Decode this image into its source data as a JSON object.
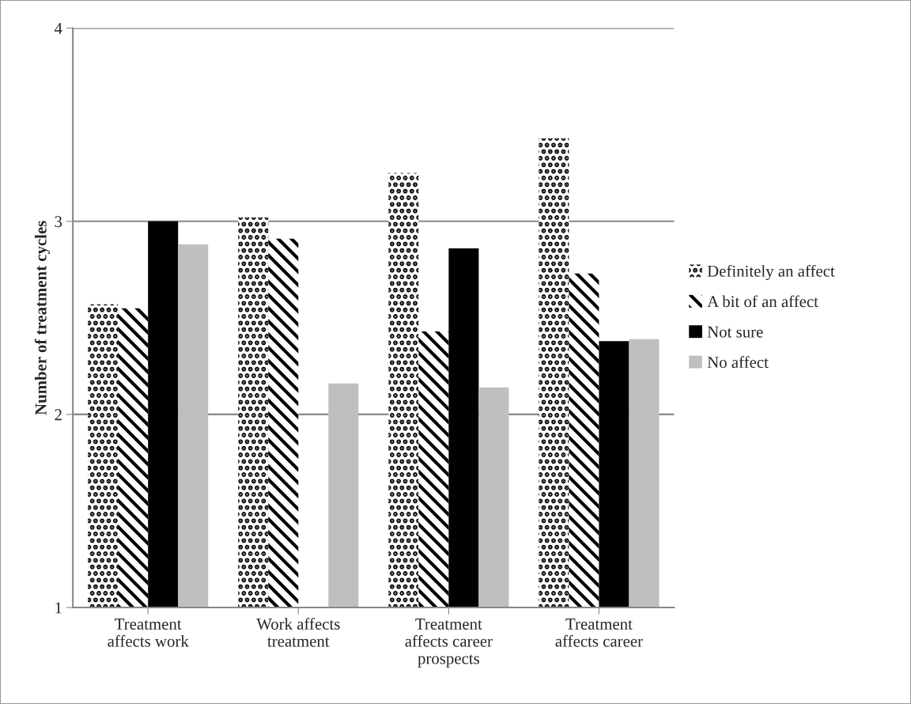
{
  "chart_data": {
    "type": "bar",
    "ylabel": "Number of treatment cycles",
    "categories": [
      "Treatment affects work",
      "Work affects treatment",
      "Treatment affects career prospects",
      "Treatment affects career"
    ],
    "series": [
      {
        "name": "Definitely an affect",
        "color": "#ffffff",
        "values": [
          2.57,
          3.02,
          3.25,
          3.43
        ]
      },
      {
        "name": "A bit of an affect",
        "color": "#ffffff",
        "values": [
          2.55,
          2.91,
          2.43,
          2.73
        ]
      },
      {
        "name": "Not sure",
        "color": "#000000",
        "values": [
          3.0,
          null,
          2.86,
          2.38
        ]
      },
      {
        "name": "No affect",
        "color": "#bfbfbf",
        "values": [
          2.88,
          2.16,
          2.14,
          2.39
        ]
      }
    ],
    "ylim": [
      1,
      4
    ],
    "yticks": [
      1,
      2,
      3,
      4
    ],
    "grid": "y",
    "legend": "right"
  }
}
